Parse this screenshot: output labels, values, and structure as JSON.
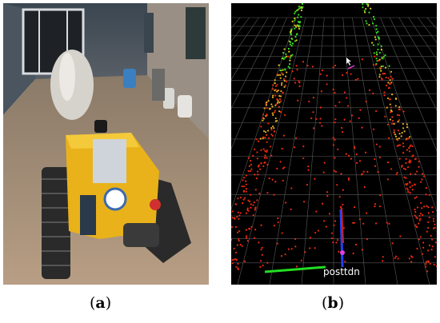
{
  "figure": {
    "panel_a": {
      "label_open": "(",
      "label_letter": "a",
      "label_close": ")"
    },
    "panel_b": {
      "label_open": "(",
      "label_letter": "b",
      "label_close": ")",
      "axis_text": "posttdn"
    }
  },
  "colors": {
    "grid": "#5a5a5a",
    "x_axis": "#22dd22",
    "z_axis": "#2040ff",
    "points_far": "#33dd22",
    "points_near": "#ee2a10"
  }
}
